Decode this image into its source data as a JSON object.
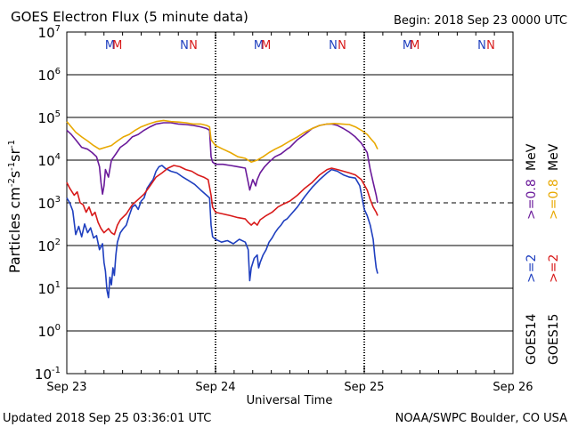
{
  "header": {
    "title": "GOES Electron Flux (5 minute data)",
    "begin": "Begin: 2018 Sep 23 0000 UTC"
  },
  "footer": {
    "updated": "Updated 2018 Sep 25 03:36:01 UTC",
    "credit": "NOAA/SWPC Boulder, CO USA"
  },
  "colors": {
    "goes14_2mev": "#1f3fbf",
    "goes14_08mev": "#6a1a9a",
    "goes15_2mev": "#d81a1a",
    "goes15_08mev": "#e8a800",
    "noon_M_blue": "#1f3fbf",
    "noon_M_red": "#d81a1a"
  },
  "chart_data": {
    "type": "line",
    "title": "GOES Electron Flux (5 minute data)",
    "xlabel": "Universal Time",
    "ylabel_base": "Particles cm",
    "ylabel_sup1": "-2",
    "ylabel_mid1": "s",
    "ylabel_sup2": "-1",
    "ylabel_mid2": "sr",
    "ylabel_sup3": "-1",
    "y_scale": "log",
    "ylim": [
      0.1,
      10000000
    ],
    "xlim_days": [
      0,
      3
    ],
    "x_tick_labels": [
      "Sep 23",
      "Sep 24",
      "Sep 25",
      "Sep 26"
    ],
    "y_tick_base": "10",
    "y_tick_exponents": [
      "7",
      "6",
      "5",
      "4",
      "3",
      "2",
      "1",
      "0",
      "-1"
    ],
    "threshold_line": 1000,
    "noon_markers": [
      {
        "label": "M",
        "color": "blue",
        "day": 0.29
      },
      {
        "label": "M",
        "color": "red",
        "day": 0.34
      },
      {
        "label": "N",
        "color": "blue",
        "day": 0.79
      },
      {
        "label": "N",
        "color": "red",
        "day": 0.85
      },
      {
        "label": "M",
        "color": "blue",
        "day": 1.29
      },
      {
        "label": "M",
        "color": "red",
        "day": 1.34
      },
      {
        "label": "N",
        "color": "blue",
        "day": 1.79
      },
      {
        "label": "N",
        "color": "red",
        "day": 1.85
      },
      {
        "label": "M",
        "color": "blue",
        "day": 2.29
      },
      {
        "label": "M",
        "color": "red",
        "day": 2.34
      },
      {
        "label": "N",
        "color": "blue",
        "day": 2.79
      },
      {
        "label": "N",
        "color": "red",
        "day": 2.85
      }
    ],
    "right_legend": {
      "goes14": "GOES14",
      "goes15": "GOES15",
      "ge2": ">=2",
      "ge08": ">=0.8",
      "mev": "MeV"
    },
    "series": [
      {
        "name": "GOES14 >=2 MeV",
        "color": "#1f3fbf",
        "points": [
          [
            0.0,
            1300
          ],
          [
            0.02,
            1000
          ],
          [
            0.04,
            650
          ],
          [
            0.06,
            180
          ],
          [
            0.08,
            280
          ],
          [
            0.1,
            160
          ],
          [
            0.12,
            320
          ],
          [
            0.14,
            200
          ],
          [
            0.16,
            260
          ],
          [
            0.18,
            150
          ],
          [
            0.2,
            170
          ],
          [
            0.22,
            80
          ],
          [
            0.24,
            110
          ],
          [
            0.25,
            40
          ],
          [
            0.26,
            25
          ],
          [
            0.27,
            9
          ],
          [
            0.28,
            6
          ],
          [
            0.29,
            18
          ],
          [
            0.3,
            12
          ],
          [
            0.31,
            30
          ],
          [
            0.32,
            20
          ],
          [
            0.33,
            60
          ],
          [
            0.34,
            120
          ],
          [
            0.36,
            200
          ],
          [
            0.38,
            250
          ],
          [
            0.4,
            300
          ],
          [
            0.42,
            500
          ],
          [
            0.44,
            800
          ],
          [
            0.46,
            900
          ],
          [
            0.48,
            700
          ],
          [
            0.5,
            1100
          ],
          [
            0.52,
            1300
          ],
          [
            0.54,
            2200
          ],
          [
            0.56,
            2800
          ],
          [
            0.58,
            3500
          ],
          [
            0.6,
            5500
          ],
          [
            0.62,
            7000
          ],
          [
            0.64,
            7500
          ],
          [
            0.66,
            6500
          ],
          [
            0.7,
            5500
          ],
          [
            0.74,
            5000
          ],
          [
            0.78,
            4000
          ],
          [
            0.82,
            3300
          ],
          [
            0.86,
            2700
          ],
          [
            0.9,
            2000
          ],
          [
            0.94,
            1500
          ],
          [
            0.96,
            1300
          ],
          [
            0.97,
            300
          ],
          [
            0.98,
            160
          ],
          [
            1.0,
            140
          ],
          [
            1.04,
            120
          ],
          [
            1.08,
            130
          ],
          [
            1.12,
            110
          ],
          [
            1.16,
            140
          ],
          [
            1.2,
            120
          ],
          [
            1.22,
            80
          ],
          [
            1.23,
            15
          ],
          [
            1.24,
            30
          ],
          [
            1.26,
            50
          ],
          [
            1.28,
            60
          ],
          [
            1.29,
            30
          ],
          [
            1.3,
            40
          ],
          [
            1.32,
            60
          ],
          [
            1.34,
            80
          ],
          [
            1.36,
            120
          ],
          [
            1.38,
            150
          ],
          [
            1.4,
            200
          ],
          [
            1.42,
            250
          ],
          [
            1.44,
            300
          ],
          [
            1.46,
            380
          ],
          [
            1.48,
            420
          ],
          [
            1.5,
            500
          ],
          [
            1.55,
            800
          ],
          [
            1.6,
            1400
          ],
          [
            1.65,
            2300
          ],
          [
            1.7,
            3500
          ],
          [
            1.75,
            5000
          ],
          [
            1.78,
            6000
          ],
          [
            1.82,
            5500
          ],
          [
            1.86,
            4500
          ],
          [
            1.9,
            4000
          ],
          [
            1.94,
            3800
          ],
          [
            1.97,
            2500
          ],
          [
            2.0,
            700
          ],
          [
            2.02,
            500
          ],
          [
            2.04,
            300
          ],
          [
            2.06,
            140
          ],
          [
            2.07,
            60
          ],
          [
            2.08,
            30
          ],
          [
            2.09,
            22
          ]
        ]
      },
      {
        "name": "GOES14 >=0.8 MeV",
        "color": "#6a1a9a",
        "points": [
          [
            0.0,
            50000
          ],
          [
            0.03,
            40000
          ],
          [
            0.06,
            30000
          ],
          [
            0.1,
            20000
          ],
          [
            0.14,
            18000
          ],
          [
            0.17,
            15000
          ],
          [
            0.2,
            12000
          ],
          [
            0.22,
            7000
          ],
          [
            0.23,
            3000
          ],
          [
            0.24,
            1600
          ],
          [
            0.25,
            2500
          ],
          [
            0.26,
            6000
          ],
          [
            0.28,
            4000
          ],
          [
            0.3,
            10000
          ],
          [
            0.33,
            14000
          ],
          [
            0.36,
            20000
          ],
          [
            0.4,
            25000
          ],
          [
            0.44,
            35000
          ],
          [
            0.48,
            40000
          ],
          [
            0.52,
            50000
          ],
          [
            0.56,
            60000
          ],
          [
            0.6,
            70000
          ],
          [
            0.65,
            75000
          ],
          [
            0.7,
            75000
          ],
          [
            0.75,
            70000
          ],
          [
            0.8,
            68000
          ],
          [
            0.85,
            65000
          ],
          [
            0.9,
            60000
          ],
          [
            0.94,
            55000
          ],
          [
            0.96,
            50000
          ],
          [
            0.97,
            12000
          ],
          [
            0.98,
            9000
          ],
          [
            1.0,
            8000
          ],
          [
            1.05,
            8000
          ],
          [
            1.1,
            7500
          ],
          [
            1.15,
            7000
          ],
          [
            1.2,
            6500
          ],
          [
            1.22,
            3000
          ],
          [
            1.23,
            2000
          ],
          [
            1.25,
            3500
          ],
          [
            1.27,
            2500
          ],
          [
            1.28,
            3500
          ],
          [
            1.3,
            5000
          ],
          [
            1.33,
            7000
          ],
          [
            1.36,
            9000
          ],
          [
            1.4,
            12000
          ],
          [
            1.44,
            14000
          ],
          [
            1.48,
            18000
          ],
          [
            1.5,
            20000
          ],
          [
            1.55,
            30000
          ],
          [
            1.6,
            40000
          ],
          [
            1.65,
            55000
          ],
          [
            1.7,
            65000
          ],
          [
            1.75,
            70000
          ],
          [
            1.78,
            70000
          ],
          [
            1.82,
            65000
          ],
          [
            1.86,
            55000
          ],
          [
            1.9,
            45000
          ],
          [
            1.94,
            35000
          ],
          [
            1.98,
            25000
          ],
          [
            2.02,
            15000
          ],
          [
            2.04,
            6000
          ],
          [
            2.06,
            3000
          ],
          [
            2.08,
            1500
          ],
          [
            2.09,
            1000
          ]
        ]
      },
      {
        "name": "GOES15 >=2 MeV",
        "color": "#d81a1a",
        "points": [
          [
            0.0,
            3000
          ],
          [
            0.02,
            2200
          ],
          [
            0.05,
            1500
          ],
          [
            0.07,
            1800
          ],
          [
            0.09,
            1000
          ],
          [
            0.11,
            900
          ],
          [
            0.13,
            600
          ],
          [
            0.15,
            800
          ],
          [
            0.17,
            500
          ],
          [
            0.19,
            600
          ],
          [
            0.21,
            350
          ],
          [
            0.23,
            250
          ],
          [
            0.25,
            200
          ],
          [
            0.28,
            250
          ],
          [
            0.3,
            200
          ],
          [
            0.32,
            180
          ],
          [
            0.34,
            300
          ],
          [
            0.36,
            400
          ],
          [
            0.4,
            550
          ],
          [
            0.44,
            900
          ],
          [
            0.48,
            1200
          ],
          [
            0.52,
            1600
          ],
          [
            0.56,
            2500
          ],
          [
            0.6,
            4000
          ],
          [
            0.64,
            5000
          ],
          [
            0.68,
            6500
          ],
          [
            0.72,
            7500
          ],
          [
            0.76,
            7000
          ],
          [
            0.8,
            6000
          ],
          [
            0.84,
            5500
          ],
          [
            0.88,
            4500
          ],
          [
            0.92,
            4000
          ],
          [
            0.95,
            3500
          ],
          [
            0.97,
            1500
          ],
          [
            0.98,
            800
          ],
          [
            1.0,
            600
          ],
          [
            1.05,
            550
          ],
          [
            1.1,
            500
          ],
          [
            1.15,
            450
          ],
          [
            1.2,
            420
          ],
          [
            1.22,
            350
          ],
          [
            1.24,
            300
          ],
          [
            1.26,
            350
          ],
          [
            1.28,
            300
          ],
          [
            1.3,
            400
          ],
          [
            1.34,
            500
          ],
          [
            1.38,
            600
          ],
          [
            1.42,
            800
          ],
          [
            1.46,
            950
          ],
          [
            1.5,
            1100
          ],
          [
            1.55,
            1500
          ],
          [
            1.6,
            2200
          ],
          [
            1.65,
            3000
          ],
          [
            1.7,
            4500
          ],
          [
            1.75,
            6000
          ],
          [
            1.78,
            6500
          ],
          [
            1.82,
            6000
          ],
          [
            1.86,
            5500
          ],
          [
            1.9,
            5000
          ],
          [
            1.94,
            4500
          ],
          [
            1.98,
            3500
          ],
          [
            2.02,
            2000
          ],
          [
            2.04,
            1200
          ],
          [
            2.06,
            800
          ],
          [
            2.08,
            600
          ],
          [
            2.09,
            500
          ]
        ]
      },
      {
        "name": "GOES15 >=0.8 MeV",
        "color": "#e8a800",
        "points": [
          [
            0.0,
            80000
          ],
          [
            0.03,
            60000
          ],
          [
            0.06,
            45000
          ],
          [
            0.1,
            35000
          ],
          [
            0.14,
            28000
          ],
          [
            0.18,
            22000
          ],
          [
            0.22,
            18000
          ],
          [
            0.26,
            20000
          ],
          [
            0.3,
            22000
          ],
          [
            0.34,
            28000
          ],
          [
            0.38,
            35000
          ],
          [
            0.42,
            40000
          ],
          [
            0.46,
            50000
          ],
          [
            0.5,
            60000
          ],
          [
            0.55,
            70000
          ],
          [
            0.6,
            80000
          ],
          [
            0.65,
            85000
          ],
          [
            0.7,
            80000
          ],
          [
            0.75,
            78000
          ],
          [
            0.8,
            75000
          ],
          [
            0.85,
            70000
          ],
          [
            0.9,
            70000
          ],
          [
            0.94,
            65000
          ],
          [
            0.96,
            60000
          ],
          [
            0.97,
            30000
          ],
          [
            1.0,
            22000
          ],
          [
            1.05,
            18000
          ],
          [
            1.1,
            15000
          ],
          [
            1.15,
            12000
          ],
          [
            1.2,
            11000
          ],
          [
            1.24,
            9000
          ],
          [
            1.28,
            10000
          ],
          [
            1.32,
            12000
          ],
          [
            1.36,
            15000
          ],
          [
            1.4,
            18000
          ],
          [
            1.45,
            22000
          ],
          [
            1.5,
            28000
          ],
          [
            1.55,
            35000
          ],
          [
            1.6,
            45000
          ],
          [
            1.65,
            55000
          ],
          [
            1.7,
            65000
          ],
          [
            1.75,
            70000
          ],
          [
            1.8,
            72000
          ],
          [
            1.85,
            70000
          ],
          [
            1.9,
            68000
          ],
          [
            1.94,
            60000
          ],
          [
            1.98,
            50000
          ],
          [
            2.02,
            40000
          ],
          [
            2.05,
            30000
          ],
          [
            2.07,
            25000
          ],
          [
            2.09,
            18000
          ]
        ]
      }
    ]
  }
}
